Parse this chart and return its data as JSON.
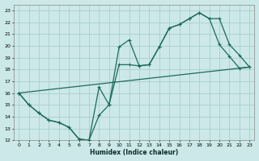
{
  "xlabel": "Humidex (Indice chaleur)",
  "bg_color": "#cce8e8",
  "grid_color": "#aacece",
  "line_color": "#1a6b5a",
  "xlim": [
    -0.5,
    23.5
  ],
  "ylim": [
    12,
    23.5
  ],
  "xticks": [
    0,
    1,
    2,
    3,
    4,
    5,
    6,
    7,
    8,
    9,
    10,
    11,
    12,
    13,
    14,
    15,
    16,
    17,
    18,
    19,
    20,
    21,
    22,
    23
  ],
  "yticks": [
    12,
    13,
    14,
    15,
    16,
    17,
    18,
    19,
    20,
    21,
    22,
    23
  ],
  "line1_x": [
    0,
    1,
    2,
    3,
    4,
    5,
    6,
    7,
    8,
    9,
    10,
    11,
    12,
    13,
    14,
    15,
    16,
    17,
    18,
    19,
    20,
    21,
    22,
    23
  ],
  "line1_y": [
    16.0,
    15.0,
    14.3,
    13.7,
    13.5,
    13.1,
    12.1,
    12.0,
    16.5,
    15.0,
    18.4,
    18.4,
    18.3,
    18.4,
    19.9,
    21.5,
    21.8,
    22.3,
    22.8,
    22.3,
    22.3,
    20.1,
    19.2,
    18.2
  ],
  "line2_x": [
    0,
    1,
    2,
    3,
    4,
    5,
    6,
    7,
    8,
    9,
    10,
    11,
    12,
    13,
    14,
    15,
    16,
    17,
    18,
    19,
    20,
    21,
    22,
    23
  ],
  "line2_y": [
    16.0,
    15.0,
    14.3,
    13.7,
    13.5,
    13.1,
    12.1,
    12.0,
    14.1,
    15.0,
    19.9,
    20.5,
    18.3,
    18.4,
    19.9,
    21.5,
    21.8,
    22.3,
    22.8,
    22.3,
    20.1,
    19.1,
    18.1,
    18.2
  ],
  "line3_x": [
    0,
    23
  ],
  "line3_y": [
    16.0,
    18.2
  ]
}
